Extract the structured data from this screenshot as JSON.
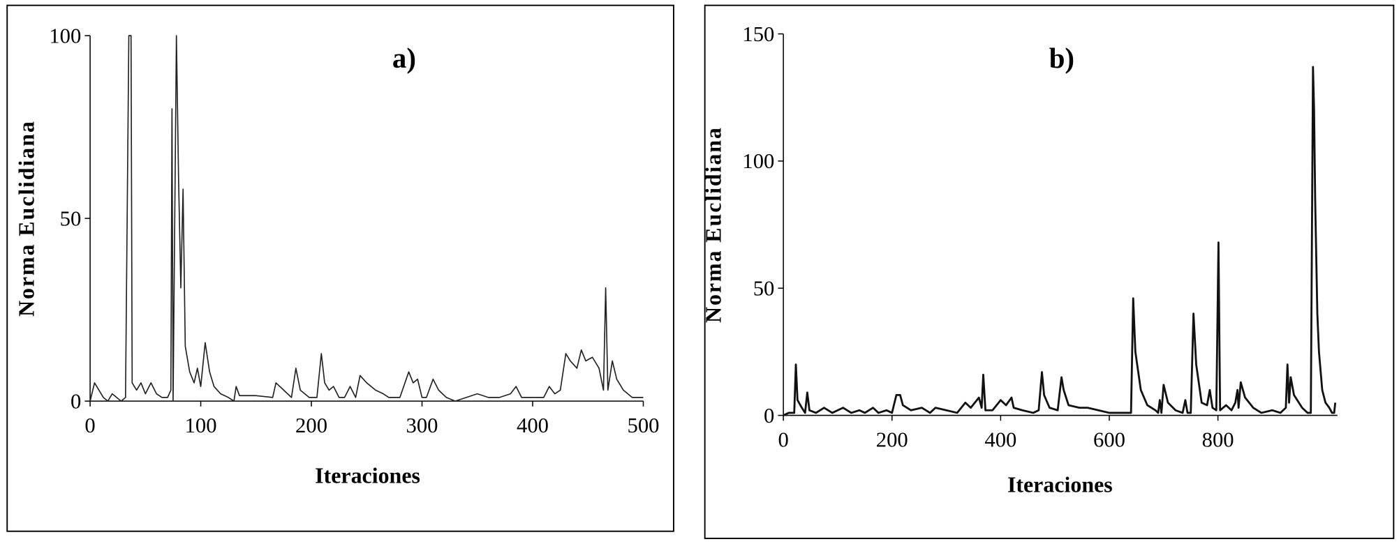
{
  "chart_data": [
    {
      "type": "line",
      "title": "a)",
      "x_label": "Iteraciones",
      "y_label": "Norma Euclidiana",
      "xlim": [
        0,
        500
      ],
      "xticks": [
        0,
        100,
        200,
        300,
        400,
        500
      ],
      "ylim": [
        0,
        100
      ],
      "yticks": [
        0,
        50,
        100
      ],
      "x": [
        0,
        4,
        8,
        12,
        16,
        20,
        24,
        28,
        32,
        35,
        37,
        38,
        42,
        46,
        50,
        55,
        60,
        65,
        70,
        73,
        74,
        75,
        78,
        80,
        82,
        84,
        86,
        90,
        94,
        97,
        100,
        104,
        108,
        112,
        118,
        125,
        130,
        132,
        135,
        150,
        165,
        168,
        175,
        182,
        186,
        190,
        198,
        205,
        209,
        212,
        216,
        220,
        225,
        230,
        235,
        240,
        244,
        250,
        258,
        265,
        270,
        280,
        288,
        292,
        296,
        300,
        304,
        310,
        315,
        322,
        330,
        340,
        350,
        360,
        370,
        380,
        385,
        390,
        400,
        410,
        415,
        420,
        425,
        430,
        434,
        440,
        444,
        448,
        454,
        460,
        464,
        466,
        468,
        472,
        476,
        482,
        490,
        500
      ],
      "series": [
        {
          "color": "#222222",
          "values": [
            0,
            5,
            3,
            1,
            0,
            2,
            1,
            0,
            1,
            100,
            100,
            5,
            3,
            5,
            2,
            5,
            2,
            1,
            1,
            3,
            80,
            0,
            100,
            60,
            31,
            58,
            15,
            8,
            5,
            9,
            4,
            16,
            8,
            4,
            2,
            1,
            0,
            4,
            1.5,
            1.5,
            1,
            5,
            3,
            1,
            9,
            3,
            1,
            1,
            13,
            5,
            3,
            4,
            1,
            1,
            4,
            1,
            7,
            5,
            3,
            2,
            1,
            1,
            8,
            5,
            6,
            1,
            1,
            6,
            3,
            1,
            0,
            1,
            2,
            1,
            1,
            2,
            4,
            1,
            1,
            1,
            4,
            2,
            3,
            13,
            11,
            9,
            14,
            11,
            12,
            9,
            3,
            31,
            3,
            11,
            6,
            3,
            1,
            1
          ]
        }
      ]
    },
    {
      "type": "line",
      "title": "b)",
      "x_label": "Iteraciones",
      "y_label": "Norma Euclidiana",
      "xlim": [
        0,
        1020
      ],
      "xticks": [
        0,
        200,
        400,
        600,
        800
      ],
      "ylim": [
        0,
        150
      ],
      "yticks": [
        0,
        50,
        100,
        150
      ],
      "x": [
        0,
        10,
        20,
        23,
        26,
        34,
        40,
        44,
        48,
        60,
        75,
        90,
        110,
        125,
        140,
        150,
        165,
        175,
        190,
        200,
        208,
        215,
        220,
        235,
        255,
        270,
        280,
        300,
        320,
        335,
        345,
        360,
        365,
        368,
        372,
        385,
        400,
        410,
        420,
        424,
        440,
        460,
        470,
        476,
        480,
        490,
        505,
        512,
        516,
        525,
        545,
        560,
        580,
        600,
        620,
        640,
        644,
        648,
        658,
        670,
        685,
        690,
        693,
        696,
        700,
        708,
        722,
        735,
        740,
        744,
        750,
        755,
        760,
        770,
        780,
        785,
        790,
        797,
        801,
        804,
        815,
        825,
        832,
        836,
        838,
        842,
        850,
        865,
        880,
        900,
        915,
        925,
        928,
        931,
        934,
        940,
        955,
        965,
        971,
        975,
        977,
        979,
        983,
        986,
        992,
        998,
        1005,
        1010,
        1014,
        1016
      ],
      "series": [
        {
          "color": "#111111",
          "values": [
            0,
            1,
            1,
            20,
            6,
            3,
            1,
            9,
            2,
            1,
            3,
            1,
            3,
            1,
            2,
            1,
            3,
            1,
            2,
            1,
            8,
            8,
            4,
            2,
            3,
            1,
            3,
            2,
            1,
            5,
            3,
            7,
            3,
            16,
            2,
            2,
            6,
            4,
            7,
            3,
            2,
            1,
            2,
            17,
            8,
            3,
            2,
            15,
            10,
            4,
            3,
            3,
            2,
            1,
            1,
            1,
            46,
            25,
            10,
            4,
            2,
            1,
            6,
            1,
            12,
            5,
            2,
            1,
            6,
            1,
            1,
            40,
            20,
            5,
            4,
            10,
            3,
            2,
            68,
            2,
            4,
            2,
            5,
            10,
            3,
            13,
            7,
            3,
            1,
            2,
            1,
            3,
            20,
            5,
            15,
            8,
            3,
            1,
            1,
            137,
            120,
            85,
            40,
            25,
            10,
            5,
            3,
            1,
            1,
            5
          ]
        }
      ]
    }
  ]
}
